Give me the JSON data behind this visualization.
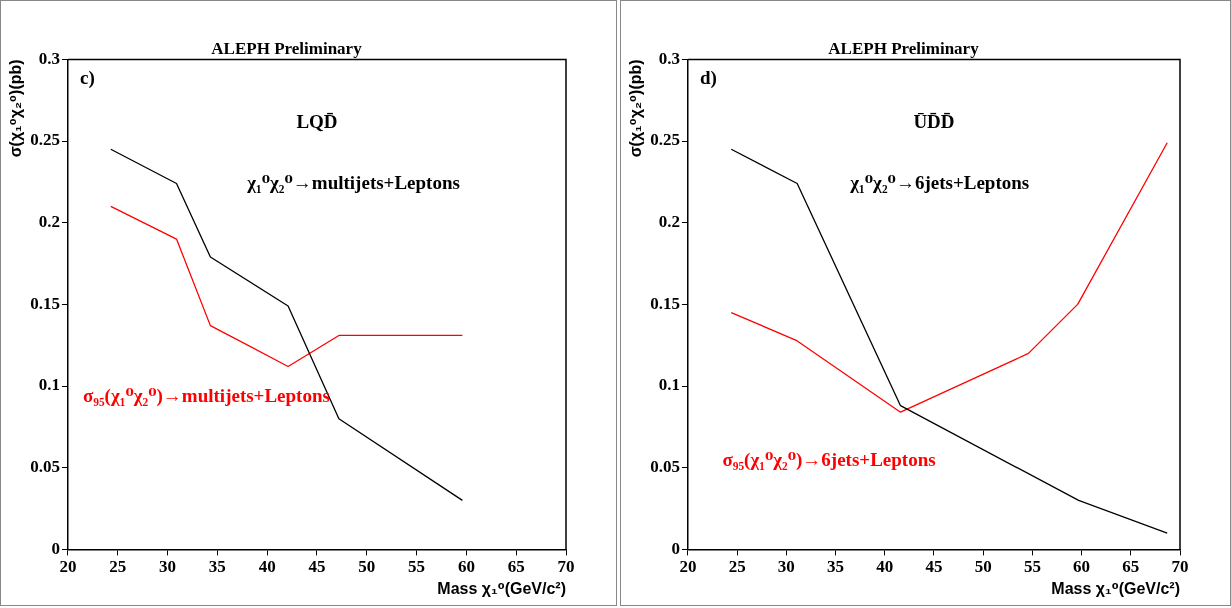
{
  "chart_data": [
    {
      "type": "line",
      "title": "ALEPH Preliminary",
      "xlabel": "Mass χ₁⁰(GeV/c²)",
      "ylabel": "σ(χ₁⁰χ₂⁰)(pb)",
      "annotations": [
        "c)",
        "LQD̄"
      ],
      "xlim": [
        20,
        70
      ],
      "xticks": [
        20,
        25,
        30,
        35,
        40,
        45,
        50,
        55,
        60,
        65,
        70
      ],
      "ylim": [
        0,
        0.3
      ],
      "yticks": [
        0,
        0.05,
        0.1,
        0.15,
        0.2,
        0.25,
        0.3
      ],
      "grid": false,
      "legend": false,
      "marker": "none",
      "series": [
        {
          "name": "χ₁⁰χ₂⁰→multijets+Leptons",
          "color": "#000000",
          "x": [
            24.3,
            30.9,
            34.3,
            42.1,
            47.2,
            59.6
          ],
          "values": [
            0.245,
            0.224,
            0.179,
            0.149,
            0.08,
            0.03
          ]
        },
        {
          "name": "σ₉₅(χ₁⁰χ₂⁰)→multijets+Leptons",
          "color": "#ff0000",
          "x": [
            24.3,
            30.9,
            34.3,
            42.1,
            47.2,
            59.6
          ],
          "values": [
            0.21,
            0.19,
            0.137,
            0.112,
            0.131,
            0.131
          ]
        }
      ]
    },
    {
      "type": "line",
      "title": "ALEPH Preliminary",
      "xlabel": "Mass χ₁⁰(GeV/c²)",
      "ylabel": "σ(χ₁⁰χ₂⁰)(pb)",
      "annotations": [
        "d)",
        "ŪD̄D̄"
      ],
      "xlim": [
        20,
        70
      ],
      "xticks": [
        20,
        25,
        30,
        35,
        40,
        45,
        50,
        55,
        60,
        65,
        70
      ],
      "ylim": [
        0,
        0.3
      ],
      "yticks": [
        0,
        0.05,
        0.1,
        0.15,
        0.2,
        0.25,
        0.3
      ],
      "grid": false,
      "legend": false,
      "marker": "none",
      "series": [
        {
          "name": "χ₁⁰χ₂⁰→6jets+Leptons",
          "color": "#000000",
          "x": [
            24.4,
            31.1,
            41.6,
            59.7,
            68.7
          ],
          "values": [
            0.245,
            0.224,
            0.088,
            0.03,
            0.01
          ]
        },
        {
          "name": "σ₉₅(χ₁⁰χ₂⁰)→6jets+Leptons",
          "color": "#ff0000",
          "x": [
            24.4,
            31.0,
            41.6,
            54.6,
            59.6,
            68.7
          ],
          "values": [
            0.145,
            0.128,
            0.084,
            0.12,
            0.15,
            0.249
          ]
        }
      ]
    }
  ]
}
